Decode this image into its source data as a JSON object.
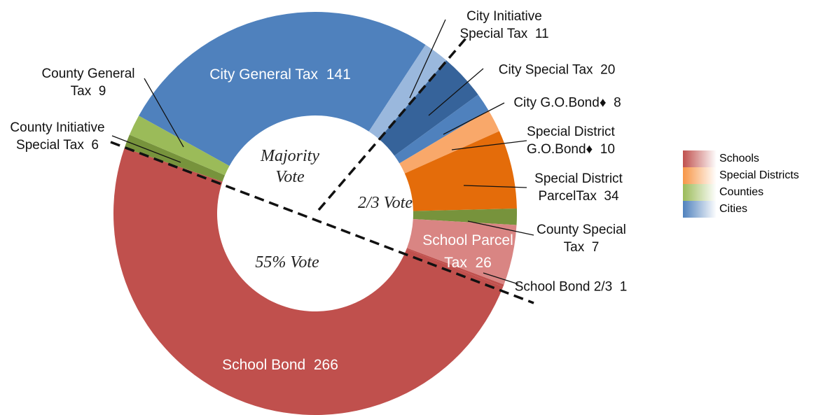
{
  "chart_data": {
    "type": "donut",
    "categories": [
      "City General Tax",
      "City Initiative Special Tax",
      "City Special Tax",
      "City G.O.Bond♦",
      "Special District G.O.Bond♦",
      "Special District ParcelTax",
      "County Special Tax",
      "School Parcel Tax",
      "School Bond 2/3",
      "School Bond",
      "County Initiative Special Tax",
      "County General Tax"
    ],
    "values": [
      141,
      11,
      20,
      8,
      10,
      34,
      7,
      26,
      1,
      266,
      6,
      9
    ],
    "colors": [
      "#4f81bd",
      "#9ab8dd",
      "#36639a",
      "#4f81bd",
      "#f9a86a",
      "#e46c0a",
      "#77933c",
      "#d98583",
      "#c0504d",
      "#c0504d",
      "#77933c",
      "#9bbb59"
    ],
    "annotations": [
      "Majority Vote",
      "2/3 Vote",
      "55% Vote"
    ],
    "legend": [
      {
        "name": "Schools",
        "color": "#c0504d"
      },
      {
        "name": "Special Districts",
        "color": "#f79646"
      },
      {
        "name": "Counties",
        "color": "#9bbb59"
      },
      {
        "name": "Cities",
        "color": "#4f81bd"
      }
    ]
  }
}
